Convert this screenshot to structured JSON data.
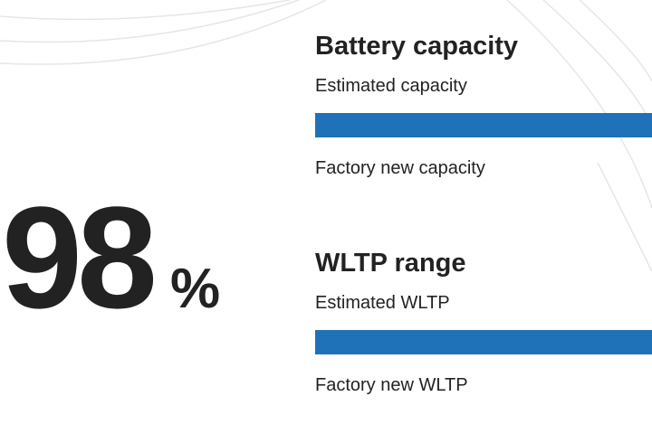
{
  "score": {
    "value": "98",
    "unit": "%"
  },
  "sections": [
    {
      "title": "Battery capacity",
      "estimated_label": "Estimated capacity",
      "factory_label": "Factory new capacity"
    },
    {
      "title": "WLTP range",
      "estimated_label": "Estimated WLTP",
      "factory_label": "Factory new WLTP"
    }
  ]
}
